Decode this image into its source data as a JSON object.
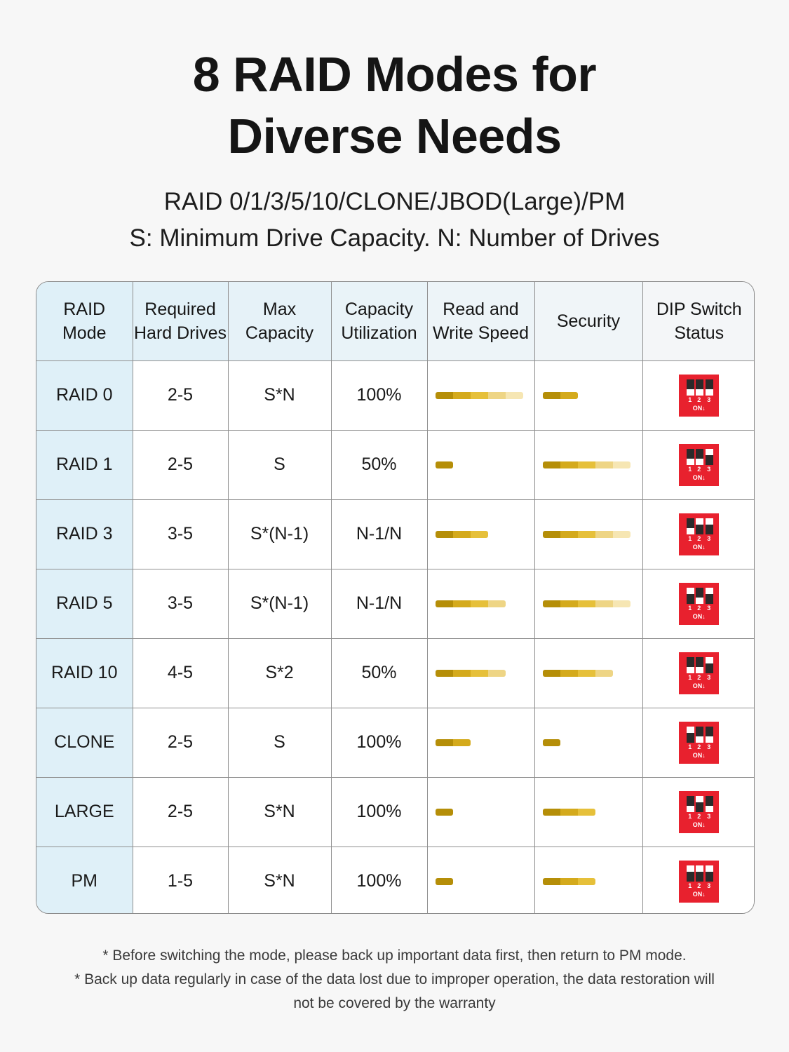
{
  "title_line1": "8 RAID Modes for",
  "title_line2": "Diverse Needs",
  "subtitle_line1": "RAID 0/1/3/5/10/CLONE/JBOD(Large)/PM",
  "subtitle_line2": "S: Minimum Drive Capacity. N: Number of Drives",
  "table": {
    "headers": [
      {
        "line1": "RAID",
        "line2": "Mode"
      },
      {
        "line1": "Required",
        "line2": "Hard Drives"
      },
      {
        "line1": "Max",
        "line2": "Capacity"
      },
      {
        "line1": "Capacity",
        "line2": "Utilization"
      },
      {
        "line1": "Read and",
        "line2": "Write Speed"
      },
      {
        "line1": "Security",
        "line2": ""
      },
      {
        "line1": "DIP Switch",
        "line2": "Status"
      }
    ],
    "rows": [
      {
        "mode": "RAID 0",
        "drives": "2-5",
        "max_capacity": "S*N",
        "utilization": "100%",
        "speed_level": 5,
        "security_level": 2,
        "dip": [
          "down",
          "down",
          "down"
        ]
      },
      {
        "mode": "RAID 1",
        "drives": "2-5",
        "max_capacity": "S",
        "utilization": "50%",
        "speed_level": 1,
        "security_level": 5,
        "dip": [
          "down",
          "down",
          "up"
        ]
      },
      {
        "mode": "RAID 3",
        "drives": "3-5",
        "max_capacity": "S*(N-1)",
        "utilization": "N-1/N",
        "speed_level": 3,
        "security_level": 5,
        "dip": [
          "down",
          "up",
          "up"
        ]
      },
      {
        "mode": "RAID 5",
        "drives": "3-5",
        "max_capacity": "S*(N-1)",
        "utilization": "N-1/N",
        "speed_level": 4,
        "security_level": 5,
        "dip": [
          "up",
          "down",
          "up"
        ]
      },
      {
        "mode": "RAID 10",
        "drives": "4-5",
        "max_capacity": "S*2",
        "utilization": "50%",
        "speed_level": 4,
        "security_level": 4,
        "dip": [
          "down",
          "down",
          "up"
        ]
      },
      {
        "mode": "CLONE",
        "drives": "2-5",
        "max_capacity": "S",
        "utilization": "100%",
        "speed_level": 2,
        "security_level": 1,
        "dip": [
          "up",
          "down",
          "down"
        ]
      },
      {
        "mode": "LARGE",
        "drives": "2-5",
        "max_capacity": "S*N",
        "utilization": "100%",
        "speed_level": 1,
        "security_level": 3,
        "dip": [
          "down",
          "up",
          "down"
        ]
      },
      {
        "mode": "PM",
        "drives": "1-5",
        "max_capacity": "S*N",
        "utilization": "100%",
        "speed_level": 1,
        "security_level": 3,
        "dip": [
          "up",
          "up",
          "up"
        ]
      }
    ]
  },
  "dip_labels": {
    "n1": "1",
    "n2": "2",
    "n3": "3",
    "on": "ON↓"
  },
  "colors": {
    "bar_levels": [
      "#b58e08",
      "#d4aa1c",
      "#e6c03a",
      "#eed585",
      "#f6e6b3"
    ],
    "dip_red": "#e8212e",
    "header_blue": "#dff0f8"
  },
  "notes": [
    "* Before switching the mode, please back up important data first, then return to PM mode.",
    "* Back up data regularly in case of the data lost due to improper operation, the data restoration will",
    "not be covered by the warranty"
  ]
}
